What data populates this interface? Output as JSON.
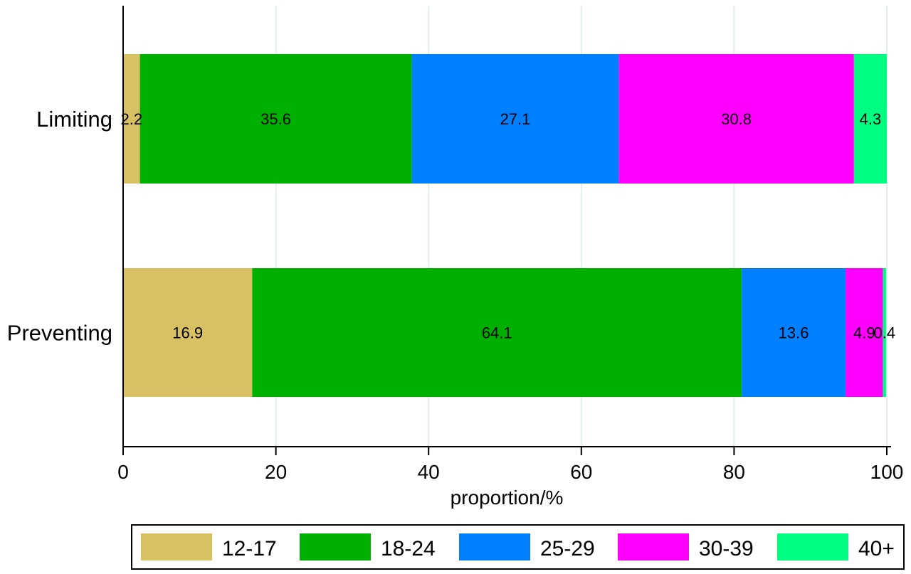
{
  "chart_data": {
    "type": "bar",
    "orientation": "horizontal",
    "stacked": true,
    "title": "",
    "xlabel": "proportion/%",
    "ylabel": "",
    "xlim": [
      0,
      100
    ],
    "xticks": [
      0,
      20,
      40,
      60,
      80,
      100
    ],
    "grid": true,
    "legend_position": "bottom",
    "categories": [
      "Limiting",
      "Preventing"
    ],
    "series": [
      {
        "name": "12-17",
        "color": "#d8c064",
        "values": [
          2.2,
          16.9
        ],
        "labels": [
          "2.2",
          "16.9"
        ]
      },
      {
        "name": "18-24",
        "color": "#00b000",
        "values": [
          35.6,
          64.1
        ],
        "labels": [
          "35.6",
          "64.1"
        ]
      },
      {
        "name": "25-29",
        "color": "#0080ff",
        "values": [
          27.1,
          13.6
        ],
        "labels": [
          "27.1",
          "13.6"
        ]
      },
      {
        "name": "30-39",
        "color": "#ff00ff",
        "values": [
          30.8,
          4.9
        ],
        "labels": [
          "30.8",
          "4.9"
        ]
      },
      {
        "name": "40+",
        "color": "#00ff80",
        "values": [
          4.3,
          0.4
        ],
        "labels": [
          "4.3",
          "0.4"
        ]
      }
    ]
  }
}
